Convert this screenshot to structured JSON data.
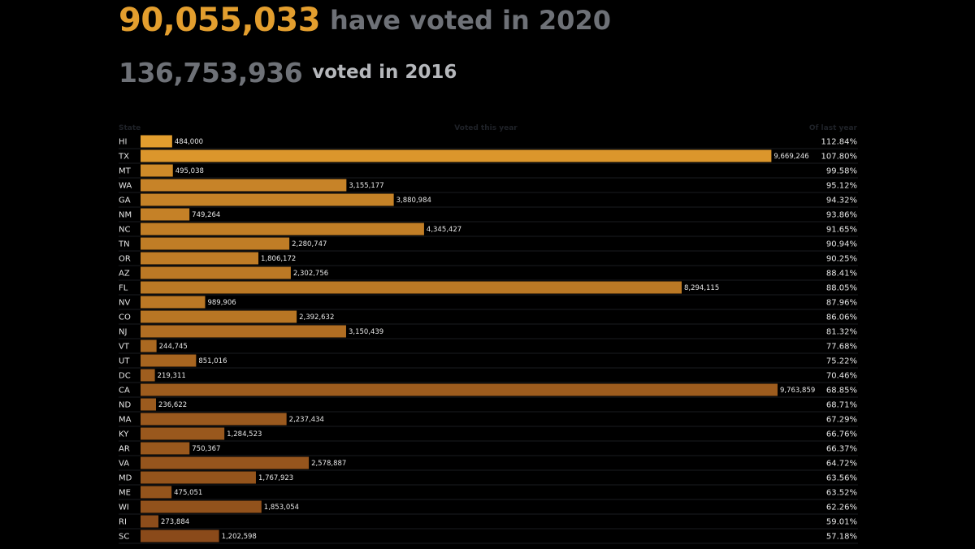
{
  "headline": {
    "count_2020": "90,055,033",
    "text_2020": "have voted in 2020",
    "count_2016": "136,753,936",
    "text_2016": "voted in 2016"
  },
  "colors": {
    "accent": "#e39e2e",
    "bar_high": "#e39e2e",
    "bar_low": "#8a4a1a",
    "muted_text": "#6e7177",
    "header_text": "#1f2228",
    "row_line": "#1a1c21",
    "background": "#000000"
  },
  "chart_data": {
    "type": "bar",
    "orientation": "horizontal",
    "columns": {
      "state": "State",
      "value": "Voted this year",
      "pct": "Of last year"
    },
    "rows": [
      {
        "state": "HI",
        "value": 484000,
        "value_label": "484,000",
        "pct": "112.84%",
        "pct_num": 112.84
      },
      {
        "state": "TX",
        "value": 9669246,
        "value_label": "9,669,246",
        "pct": "107.80%",
        "pct_num": 107.8
      },
      {
        "state": "MT",
        "value": 495038,
        "value_label": "495,038",
        "pct": "99.58%",
        "pct_num": 99.58
      },
      {
        "state": "WA",
        "value": 3155177,
        "value_label": "3,155,177",
        "pct": "95.12%",
        "pct_num": 95.12
      },
      {
        "state": "GA",
        "value": 3880984,
        "value_label": "3,880,984",
        "pct": "94.32%",
        "pct_num": 94.32
      },
      {
        "state": "NM",
        "value": 749264,
        "value_label": "749,264",
        "pct": "93.86%",
        "pct_num": 93.86
      },
      {
        "state": "NC",
        "value": 4345427,
        "value_label": "4,345,427",
        "pct": "91.65%",
        "pct_num": 91.65
      },
      {
        "state": "TN",
        "value": 2280747,
        "value_label": "2,280,747",
        "pct": "90.94%",
        "pct_num": 90.94
      },
      {
        "state": "OR",
        "value": 1806172,
        "value_label": "1,806,172",
        "pct": "90.25%",
        "pct_num": 90.25
      },
      {
        "state": "AZ",
        "value": 2302756,
        "value_label": "2,302,756",
        "pct": "88.41%",
        "pct_num": 88.41
      },
      {
        "state": "FL",
        "value": 8294115,
        "value_label": "8,294,115",
        "pct": "88.05%",
        "pct_num": 88.05
      },
      {
        "state": "NV",
        "value": 989906,
        "value_label": "989,906",
        "pct": "87.96%",
        "pct_num": 87.96
      },
      {
        "state": "CO",
        "value": 2392632,
        "value_label": "2,392,632",
        "pct": "86.06%",
        "pct_num": 86.06
      },
      {
        "state": "NJ",
        "value": 3150439,
        "value_label": "3,150,439",
        "pct": "81.32%",
        "pct_num": 81.32
      },
      {
        "state": "VT",
        "value": 244745,
        "value_label": "244,745",
        "pct": "77.68%",
        "pct_num": 77.68
      },
      {
        "state": "UT",
        "value": 851016,
        "value_label": "851,016",
        "pct": "75.22%",
        "pct_num": 75.22
      },
      {
        "state": "DC",
        "value": 219311,
        "value_label": "219,311",
        "pct": "70.46%",
        "pct_num": 70.46
      },
      {
        "state": "CA",
        "value": 9763859,
        "value_label": "9,763,859",
        "pct": "68.85%",
        "pct_num": 68.85
      },
      {
        "state": "ND",
        "value": 236622,
        "value_label": "236,622",
        "pct": "68.71%",
        "pct_num": 68.71
      },
      {
        "state": "MA",
        "value": 2237434,
        "value_label": "2,237,434",
        "pct": "67.29%",
        "pct_num": 67.29
      },
      {
        "state": "KY",
        "value": 1284523,
        "value_label": "1,284,523",
        "pct": "66.76%",
        "pct_num": 66.76
      },
      {
        "state": "AR",
        "value": 750367,
        "value_label": "750,367",
        "pct": "66.37%",
        "pct_num": 66.37
      },
      {
        "state": "VA",
        "value": 2578887,
        "value_label": "2,578,887",
        "pct": "64.72%",
        "pct_num": 64.72
      },
      {
        "state": "MD",
        "value": 1767923,
        "value_label": "1,767,923",
        "pct": "63.56%",
        "pct_num": 63.56
      },
      {
        "state": "ME",
        "value": 475051,
        "value_label": "475,051",
        "pct": "63.52%",
        "pct_num": 63.52
      },
      {
        "state": "WI",
        "value": 1853054,
        "value_label": "1,853,054",
        "pct": "62.26%",
        "pct_num": 62.26
      },
      {
        "state": "RI",
        "value": 273884,
        "value_label": "273,884",
        "pct": "59.01%",
        "pct_num": 59.01
      },
      {
        "state": "SC",
        "value": 1202598,
        "value_label": "1,202,598",
        "pct": "57.18%",
        "pct_num": 57.18
      }
    ],
    "xlim": [
      0,
      9763859
    ],
    "grid": false,
    "legend": "none"
  }
}
